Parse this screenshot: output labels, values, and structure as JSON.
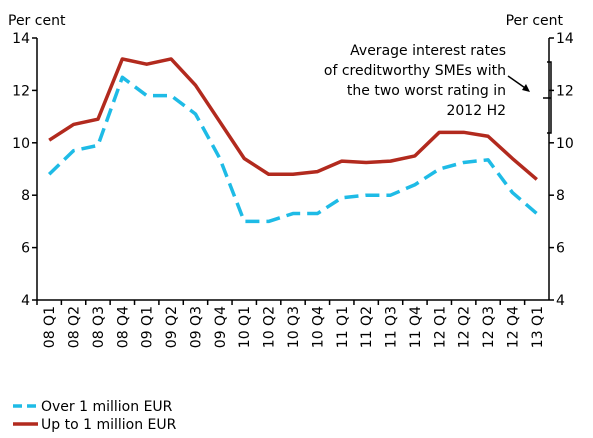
{
  "chart_data": {
    "type": "line",
    "y_label": "Per cent",
    "y2_label": "Per cent",
    "annotation": [
      "Average interest rates",
      "of creditworthy SMEs with",
      "the two worst rating in",
      "2012 H2"
    ],
    "categories": [
      "08 Q1",
      "08 Q2",
      "08 Q3",
      "08 Q4",
      "09 Q1",
      "09 Q2",
      "09 Q3",
      "09 Q4",
      "10 Q1",
      "10 Q2",
      "10 Q3",
      "10 Q4",
      "11 Q1",
      "11 Q2",
      "11 Q3",
      "11 Q4",
      "12 Q1",
      "12 Q2",
      "12 Q3",
      "12 Q4",
      "13 Q1"
    ],
    "series": [
      {
        "name": "Over 1 million EUR",
        "color": "#1ebbe6",
        "dashed": true,
        "values": [
          8.8,
          9.7,
          9.9,
          12.5,
          11.8,
          11.8,
          11.1,
          9.4,
          7.0,
          7.0,
          7.3,
          7.3,
          7.9,
          8.0,
          8.0,
          8.4,
          9.0,
          9.25,
          9.35,
          8.1,
          7.3
        ]
      },
      {
        "name": "Up to 1 million EUR",
        "color": "#b22a1e",
        "dashed": false,
        "values": [
          10.1,
          10.7,
          10.9,
          13.2,
          13.0,
          13.2,
          12.2,
          10.8,
          9.4,
          8.8,
          8.8,
          8.9,
          9.3,
          9.25,
          9.3,
          9.5,
          10.4,
          10.4,
          10.25,
          9.4,
          8.6
        ]
      }
    ],
    "ylim": [
      4,
      14
    ],
    "yticks": [
      4,
      6,
      8,
      10,
      12,
      14
    ],
    "y2lim": [
      4,
      14
    ],
    "y2ticks": [
      4,
      6,
      8,
      10,
      12,
      14
    ]
  }
}
